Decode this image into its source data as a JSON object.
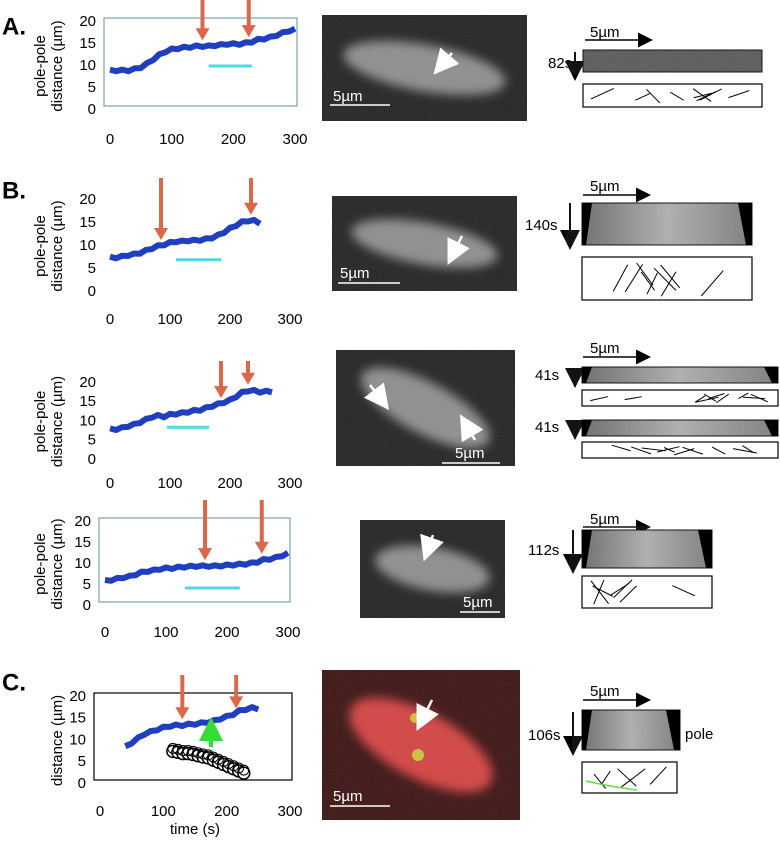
{
  "chart_data": [
    {
      "type": "line",
      "ylabel": [
        "pole-pole",
        "distance (µm)"
      ],
      "xlim": [
        0,
        300
      ],
      "ylim": [
        0,
        20
      ],
      "xticks": [
        0,
        100,
        200,
        300
      ],
      "yticks": [
        0,
        5,
        10,
        15,
        20
      ],
      "frame_color": "#7f9fb0",
      "series": [
        {
          "color": "#1f3fbf",
          "x": [
            0,
            10,
            20,
            30,
            40,
            50,
            60,
            70,
            80,
            90,
            100,
            110,
            120,
            130,
            140,
            150,
            160,
            170,
            180,
            190,
            200,
            210,
            220,
            230,
            240,
            250,
            260,
            270,
            280,
            290,
            300
          ],
          "values": [
            9,
            9,
            9,
            9,
            9.3,
            9.7,
            10.5,
            11.5,
            12.5,
            13.3,
            13.8,
            14,
            14.2,
            14.3,
            14.5,
            14.5,
            14.5,
            14.7,
            14.8,
            15,
            15,
            15,
            15.2,
            15.5,
            16,
            16.2,
            16.5,
            17,
            17.5,
            18,
            18.3
          ]
        }
      ],
      "arrows_x": [
        150,
        225
      ],
      "arrow_color": "#d9694a",
      "interval": {
        "x": [
          160,
          230
        ],
        "y": 10,
        "color": "#4dd9e6"
      }
    },
    {
      "type": "line",
      "ylabel": [
        "pole-pole",
        "distance (µm)"
      ],
      "xlim": [
        0,
        300
      ],
      "ylim": [
        0,
        20
      ],
      "xticks": [
        0,
        100,
        200,
        300
      ],
      "yticks": [
        0,
        5,
        10,
        15,
        20
      ],
      "series": [
        {
          "color": "#1f3fbf",
          "x": [
            0,
            10,
            20,
            30,
            40,
            50,
            60,
            70,
            80,
            90,
            100,
            110,
            120,
            130,
            140,
            150,
            160,
            170,
            180,
            190,
            200,
            210,
            220,
            230,
            240,
            250
          ],
          "values": [
            7.5,
            7.5,
            7.7,
            8,
            8.2,
            8.5,
            9,
            9.5,
            10,
            10.3,
            10.7,
            11,
            11,
            11.2,
            11.2,
            11.3,
            11.5,
            11.8,
            12.3,
            13,
            13.8,
            14.5,
            15.2,
            15.5,
            15.5,
            15
          ]
        }
      ],
      "arrows_x": [
        85,
        235
      ],
      "arrow_color": "#d9694a",
      "interval": {
        "x": [
          110,
          185
        ],
        "y": 7,
        "color": "#4dd9e6"
      }
    },
    {
      "type": "line",
      "ylabel": [
        "pole-pole",
        "distance (µm)"
      ],
      "xlim": [
        0,
        300
      ],
      "ylim": [
        0,
        20
      ],
      "xticks": [
        0,
        100,
        200,
        300
      ],
      "yticks": [
        0,
        5,
        10,
        15,
        20
      ],
      "series": [
        {
          "color": "#1f3fbf",
          "x": [
            0,
            10,
            20,
            30,
            40,
            50,
            60,
            70,
            80,
            90,
            100,
            110,
            120,
            130,
            140,
            150,
            160,
            170,
            180,
            190,
            200,
            210,
            220,
            230,
            240,
            250,
            260,
            270
          ],
          "values": [
            8,
            8,
            8.3,
            8.8,
            9.2,
            9.8,
            10.5,
            11.2,
            11.5,
            11.3,
            11.8,
            12,
            12.2,
            12.5,
            12.8,
            13,
            13.5,
            14,
            14.5,
            15,
            15.5,
            16.5,
            17.5,
            18,
            18,
            17.7,
            17.8,
            17.8
          ]
        }
      ],
      "arrows_x": [
        185,
        230
      ],
      "arrow_color": "#d9694a",
      "interval": {
        "x": [
          95,
          165
        ],
        "y": 8.5,
        "color": "#4dd9e6"
      }
    },
    {
      "type": "line",
      "ylabel": [
        "pole-pole",
        "distance (µm)"
      ],
      "xlim": [
        0,
        300
      ],
      "ylim": [
        0,
        20
      ],
      "xticks": [
        0,
        100,
        200,
        300
      ],
      "yticks": [
        0,
        5,
        10,
        15,
        20
      ],
      "frame_color": "#7f9fb0",
      "series": [
        {
          "color": "#1f3fbf",
          "x": [
            0,
            10,
            20,
            30,
            40,
            50,
            60,
            70,
            80,
            90,
            100,
            110,
            120,
            130,
            140,
            150,
            160,
            170,
            180,
            190,
            200,
            210,
            220,
            230,
            240,
            250,
            260,
            270,
            280,
            290,
            300
          ],
          "values": [
            6,
            6.2,
            6.5,
            6.8,
            7,
            7.5,
            8,
            8.3,
            8.5,
            8.8,
            9,
            9,
            9.2,
            9.3,
            9.4,
            9.5,
            9.5,
            9.5,
            9.5,
            9.6,
            9.7,
            9.8,
            9.9,
            10,
            10.2,
            10.5,
            11,
            11.2,
            11.5,
            12,
            12.5
          ]
        }
      ],
      "arrows_x": [
        164,
        257
      ],
      "arrow_color": "#d9694a",
      "interval": {
        "x": [
          131,
          221
        ],
        "y": 4.3,
        "color": "#4dd9e6"
      }
    },
    {
      "type": "line",
      "ylabel": [
        "distance (µm)"
      ],
      "xlabel": "time (s)",
      "xlim": [
        0,
        300
      ],
      "ylim": [
        0,
        20
      ],
      "xticks": [
        0,
        100,
        200,
        300
      ],
      "yticks": [
        0,
        5,
        10,
        15,
        20
      ],
      "frame_color": "#000000",
      "series": [
        {
          "color": "#1f3fbf",
          "x": [
            40,
            50,
            60,
            70,
            80,
            90,
            100,
            110,
            120,
            130,
            140,
            150,
            160,
            170,
            180,
            190,
            200,
            210,
            220,
            230,
            240,
            250
          ],
          "values": [
            8.5,
            9.5,
            10.5,
            11.5,
            12,
            12.5,
            13,
            13.3,
            13.5,
            13.5,
            13.7,
            13.8,
            14,
            14.2,
            14.5,
            15,
            15.5,
            16,
            16.8,
            17.2,
            17.5,
            17.3
          ]
        },
        {
          "color": "#000000",
          "marker": "open-circle",
          "x": [
            115,
            123,
            131,
            139,
            147,
            155,
            163,
            171,
            179,
            187,
            195,
            203,
            211,
            219,
            227
          ],
          "values": [
            7.5,
            7.3,
            7,
            7,
            6.8,
            6.5,
            6.2,
            6,
            5.5,
            5,
            4.5,
            4,
            3.5,
            3,
            2.5
          ]
        }
      ],
      "arrows_x": [
        130,
        215
      ],
      "arrow_color": "#d9694a"
    }
  ],
  "rows": [
    {
      "letter": "A.",
      "image_scale": "5µm",
      "kymo_scale": "5µm",
      "kymo_times": [
        "82s"
      ]
    },
    {
      "letter": "B.",
      "image_scale": "5µm",
      "kymo_scale": "5µm",
      "kymo_times": [
        "140s"
      ]
    },
    {
      "image_scale": "5µm",
      "kymo_scale": "5µm",
      "kymo_times": [
        "41s",
        "41s"
      ]
    },
    {
      "image_scale": "5µm",
      "kymo_scale": "5µm",
      "kymo_times": [
        "112s"
      ]
    },
    {
      "letter": "C.",
      "image_scale": "5µm",
      "kymo_scale": "5µm",
      "kymo_times": [
        "106s"
      ],
      "kymo_note": "pole"
    }
  ]
}
